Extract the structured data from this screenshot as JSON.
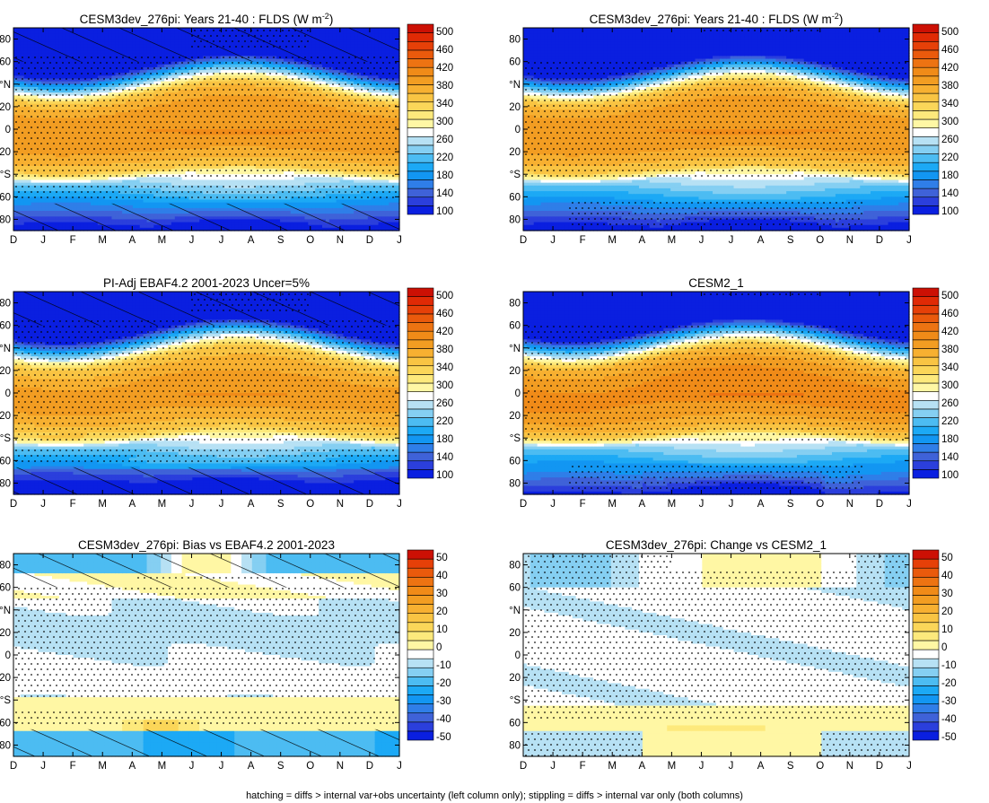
{
  "footer": "hatching = diffs > internal var+obs uncertainty (left column only); stippling = diffs > internal var only (both columns)",
  "chart_data": [
    {
      "type": "heatmap",
      "title": "CESM3dev_276pi: Years 21-40 : FLDS (W m",
      "title_sup": "-2",
      "title_tail": ")",
      "field": "clim_model",
      "hatch": true,
      "stipple": "clim_a",
      "colorbar": "abs"
    },
    {
      "type": "heatmap",
      "title": "CESM3dev_276pi: Years 21-40 : FLDS (W m",
      "title_sup": "-2",
      "title_tail": ")",
      "field": "clim_model",
      "hatch": false,
      "stipple": "clim_b",
      "colorbar": "abs"
    },
    {
      "type": "heatmap",
      "title": "PI-Adj EBAF4.2 2001-2023 Uncer=5%",
      "field": "clim_obs",
      "hatch": true,
      "stipple": "clim_a",
      "colorbar": "abs"
    },
    {
      "type": "heatmap",
      "title": "CESM2_1",
      "field": "clim_cesm2",
      "hatch": false,
      "stipple": "clim_b",
      "colorbar": "abs"
    },
    {
      "type": "heatmap",
      "title": "CESM3dev_276pi: Bias vs EBAF4.2 2001-2023",
      "field": "bias",
      "hatch": true,
      "stipple": "diff_a",
      "colorbar": "diff"
    },
    {
      "type": "heatmap",
      "title": "CESM3dev_276pi: Change vs CESM2_1",
      "field": "change",
      "hatch": false,
      "stipple": "diff_b",
      "colorbar": "diff"
    }
  ],
  "axes": {
    "x_ticks": [
      "D",
      "J",
      "F",
      "M",
      "A",
      "M",
      "J",
      "J",
      "A",
      "S",
      "O",
      "N",
      "D",
      "J"
    ],
    "y_ticks": [
      "80",
      "60",
      "°N",
      "20",
      "0",
      "20",
      "°S",
      "60",
      "80"
    ],
    "y_values": [
      80,
      60,
      40,
      20,
      0,
      -20,
      -40,
      -60,
      -80
    ],
    "ylim": [
      -90,
      90
    ]
  },
  "colorbars": {
    "abs": {
      "labels": [
        "500",
        "460",
        "420",
        "380",
        "340",
        "300",
        "260",
        "220",
        "180",
        "140",
        "100"
      ],
      "levels": [
        90,
        100,
        120,
        140,
        160,
        180,
        200,
        220,
        240,
        260,
        280,
        300,
        320,
        340,
        360,
        380,
        400,
        420,
        440,
        460,
        480,
        500,
        520
      ],
      "colors": [
        "#0a1fe0",
        "#2b3fdc",
        "#3f62d8",
        "#2f7ee8",
        "#1296f2",
        "#1ca9f5",
        "#4cbcf2",
        "#85cff2",
        "#b7e1f4",
        "#ffffff",
        "#fff7a4",
        "#fde97c",
        "#fbd659",
        "#f9c443",
        "#f7b031",
        "#f29d22",
        "#f08b18",
        "#ed7312",
        "#ea5a0c",
        "#e64008",
        "#e02a05",
        "#cc1004"
      ]
    },
    "diff": {
      "labels": [
        "50",
        "40",
        "30",
        "20",
        "10",
        "0",
        "-10",
        "-20",
        "-30",
        "-40",
        "-50"
      ],
      "levels": [
        -55,
        -50,
        -45,
        -40,
        -35,
        -30,
        -25,
        -20,
        -15,
        -10,
        -5,
        5,
        10,
        15,
        20,
        25,
        30,
        35,
        40,
        45,
        50,
        55
      ],
      "colors": [
        "#0a1fe0",
        "#2b3fdc",
        "#3f62d8",
        "#2f7ee8",
        "#1296f2",
        "#1ca9f5",
        "#4cbcf2",
        "#85cff2",
        "#b7e1f4",
        "#ffffff",
        "#fff7a4",
        "#fde97c",
        "#fbd659",
        "#f9c443",
        "#f7b031",
        "#f29d22",
        "#f08b18",
        "#ed7312",
        "#ea5a0c",
        "#e64008",
        "#cc1004"
      ]
    }
  }
}
